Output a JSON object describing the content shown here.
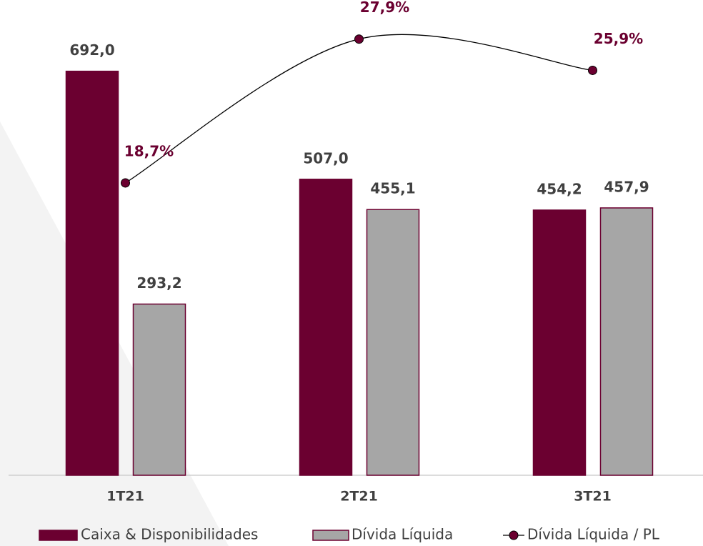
{
  "chart_data": {
    "type": "bar_line",
    "categories": [
      "1T21",
      "2T21",
      "3T21"
    ],
    "series": [
      {
        "name": "Caixa & Disponibilidades",
        "color": "#6b0030",
        "values": [
          692.0,
          507.0,
          454.2
        ],
        "value_labels": [
          "692,0",
          "507,0",
          "454,2"
        ]
      },
      {
        "name": "Dívida Líquida",
        "color": "#a6a6a6",
        "values": [
          293.2,
          455.1,
          457.9
        ],
        "value_labels": [
          "293,2",
          "455,1",
          "457,9"
        ]
      },
      {
        "name": "Dívida Líquida / PL",
        "color": "#6b0030",
        "axis": "y2",
        "type": "line",
        "values": [
          18.7,
          27.9,
          25.9
        ],
        "value_labels": [
          "18,7%",
          "27,9%",
          "25,9%"
        ]
      }
    ],
    "ylim": [
      0,
      814
    ],
    "y2lim": [
      0,
      30.4
    ]
  }
}
